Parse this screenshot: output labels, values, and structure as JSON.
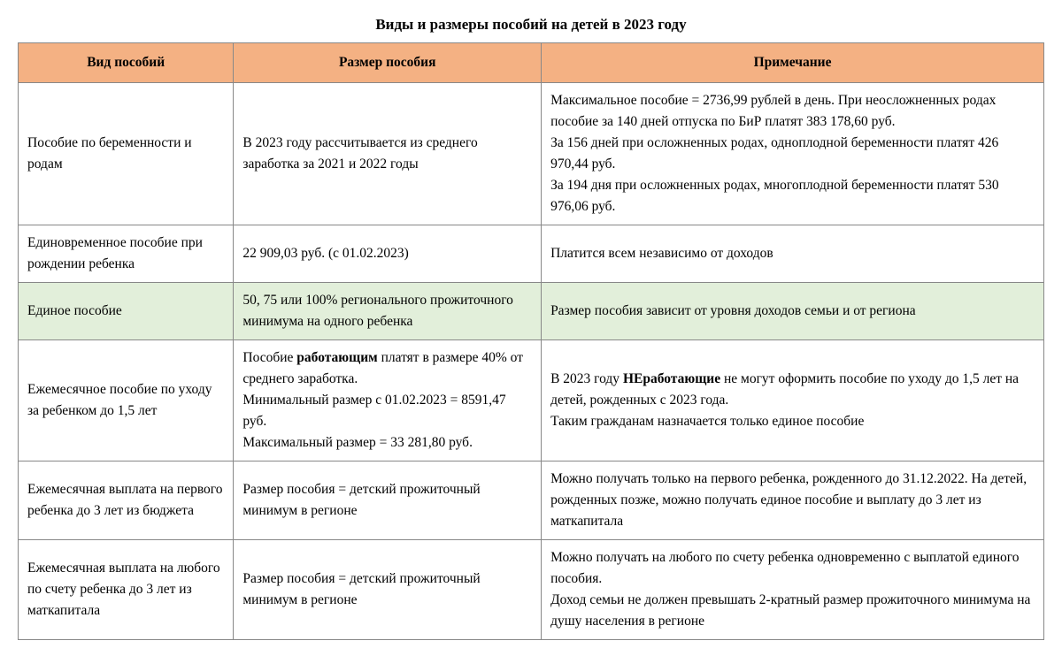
{
  "title": "Виды и размеры пособий на детей в 2023 году",
  "colors": {
    "header_bg": "#f4b183",
    "highlight_bg": "#e2efda",
    "border": "#888888",
    "text": "#000000",
    "page_bg": "#ffffff"
  },
  "typography": {
    "title_fontsize_pt": 13,
    "body_fontsize_pt": 12,
    "font_family": "Georgia / Times New Roman serif"
  },
  "columns": [
    {
      "label": "Вид пособий",
      "width_pct": 21
    },
    {
      "label": "Размер пособия",
      "width_pct": 30
    },
    {
      "label": "Примечание",
      "width_pct": 49
    }
  ],
  "rows": [
    {
      "highlight": false,
      "cells": {
        "kind": "Пособие по беременности и родам",
        "size": "В 2023 году рассчитывается из среднего заработка за 2021 и 2022 годы",
        "note_lines": [
          "Максимальное пособие = 2736,99 рублей в день. При неосложненных родах пособие за 140 дней отпуска по БиР платят 383 178,60 руб.",
          "За 156 дней при осложненных родах, одноплодной беременности платят 426 970,44 руб.",
          "За 194 дня при осложненных родах, многоплодной беременности платят 530 976,06 руб."
        ]
      }
    },
    {
      "highlight": false,
      "cells": {
        "kind": "Единовременное пособие при рождении ребенка",
        "size": "22 909,03 руб. (с 01.02.2023)",
        "note": "Платится всем независимо от доходов"
      }
    },
    {
      "highlight": true,
      "cells": {
        "kind": "Единое пособие",
        "size": "50, 75 или 100% регионального прожиточного минимума на одного ребенка",
        "note": "Размер пособия зависит от уровня доходов семьи и от региона"
      }
    },
    {
      "highlight": false,
      "cells": {
        "kind": "Ежемесячное пособие по уходу за ребенком до 1,5 лет",
        "size_rich": {
          "prefix1": "Пособие ",
          "bold1": "работающим",
          "suffix1": " платят в размере 40% от среднего заработка.",
          "line2": "Минимальный размер с 01.02.2023 = 8591,47 руб.",
          "line3": "Максимальный размер = 33 281,80 руб."
        },
        "note_rich": {
          "prefix": "В 2023 году ",
          "bold": "НЕработающие",
          "suffix": " не могут оформить пособие по уходу до 1,5 лет на детей, рожденных с 2023 года.",
          "line2": "Таким гражданам назначается только единое пособие"
        }
      }
    },
    {
      "highlight": false,
      "cells": {
        "kind": "Ежемесячная выплата на первого ребенка до 3 лет из бюджета",
        "size": "Размер пособия = детский прожиточный минимум в регионе",
        "note": "Можно получать только на первого ребенка, рожденного до 31.12.2022. На детей, рожденных позже, можно получать единое пособие и выплату до 3 лет из маткапитала"
      }
    },
    {
      "highlight": false,
      "cells": {
        "kind": "Ежемесячная выплата на любого по счету ребенка до 3 лет из маткапитала",
        "size": "Размер пособия = детский прожиточный минимум в регионе",
        "note_lines": [
          "Можно получать на любого по счету ребенка одновременно с выплатой единого пособия.",
          "Доход семьи не должен превышать 2-кратный размер прожиточного минимума на душу населения в регионе"
        ]
      }
    }
  ]
}
